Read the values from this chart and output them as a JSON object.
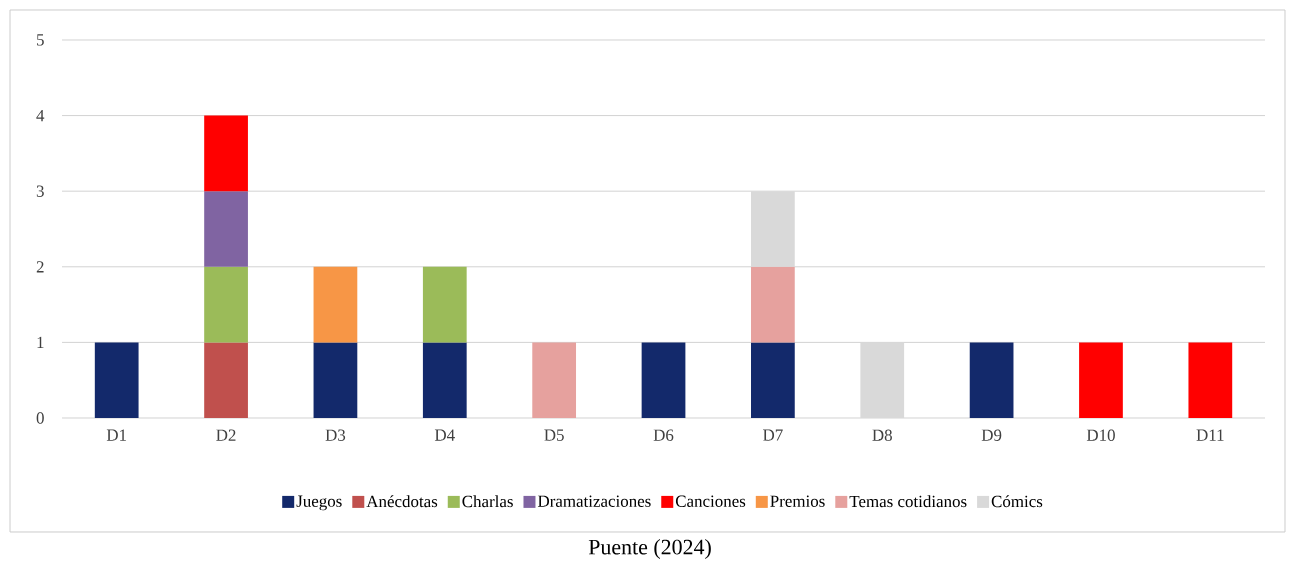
{
  "chart_data": {
    "type": "bar",
    "stacked": true,
    "categories": [
      "D1",
      "D2",
      "D3",
      "D4",
      "D5",
      "D6",
      "D7",
      "D8",
      "D9",
      "D10",
      "D11"
    ],
    "series": [
      {
        "name": "Juegos",
        "color": "#13296b",
        "values": [
          1,
          null,
          1,
          1,
          null,
          1,
          1,
          null,
          1,
          null,
          null
        ]
      },
      {
        "name": "Anécdotas",
        "color": "#c0504d",
        "values": [
          null,
          1,
          null,
          null,
          null,
          null,
          null,
          null,
          null,
          null,
          null
        ]
      },
      {
        "name": "Charlas",
        "color": "#9bbb59",
        "values": [
          null,
          1,
          null,
          1,
          null,
          null,
          null,
          null,
          null,
          null,
          null
        ]
      },
      {
        "name": "Dramatizaciones",
        "color": "#8064a2",
        "values": [
          null,
          1,
          null,
          null,
          null,
          null,
          null,
          null,
          null,
          null,
          null
        ]
      },
      {
        "name": "Canciones",
        "color": "#ff0000",
        "values": [
          null,
          1,
          null,
          null,
          null,
          null,
          null,
          null,
          null,
          1,
          1
        ]
      },
      {
        "name": "Premios",
        "color": "#f79646",
        "values": [
          null,
          null,
          1,
          null,
          null,
          null,
          null,
          null,
          null,
          null,
          null
        ]
      },
      {
        "name": "Temas cotidianos",
        "color": "#e6a19e",
        "values": [
          null,
          null,
          null,
          null,
          1,
          null,
          1,
          null,
          null,
          null,
          null
        ]
      },
      {
        "name": "Cómics",
        "color": "#d9d9d9",
        "values": [
          null,
          null,
          null,
          null,
          null,
          null,
          1,
          1,
          null,
          null,
          null
        ]
      }
    ],
    "ylim": [
      0,
      5
    ],
    "yticks": [
      0,
      1,
      2,
      3,
      4,
      5
    ],
    "grid": "y",
    "legend": "bottom",
    "annotations": [
      "Puente (2024)"
    ]
  }
}
